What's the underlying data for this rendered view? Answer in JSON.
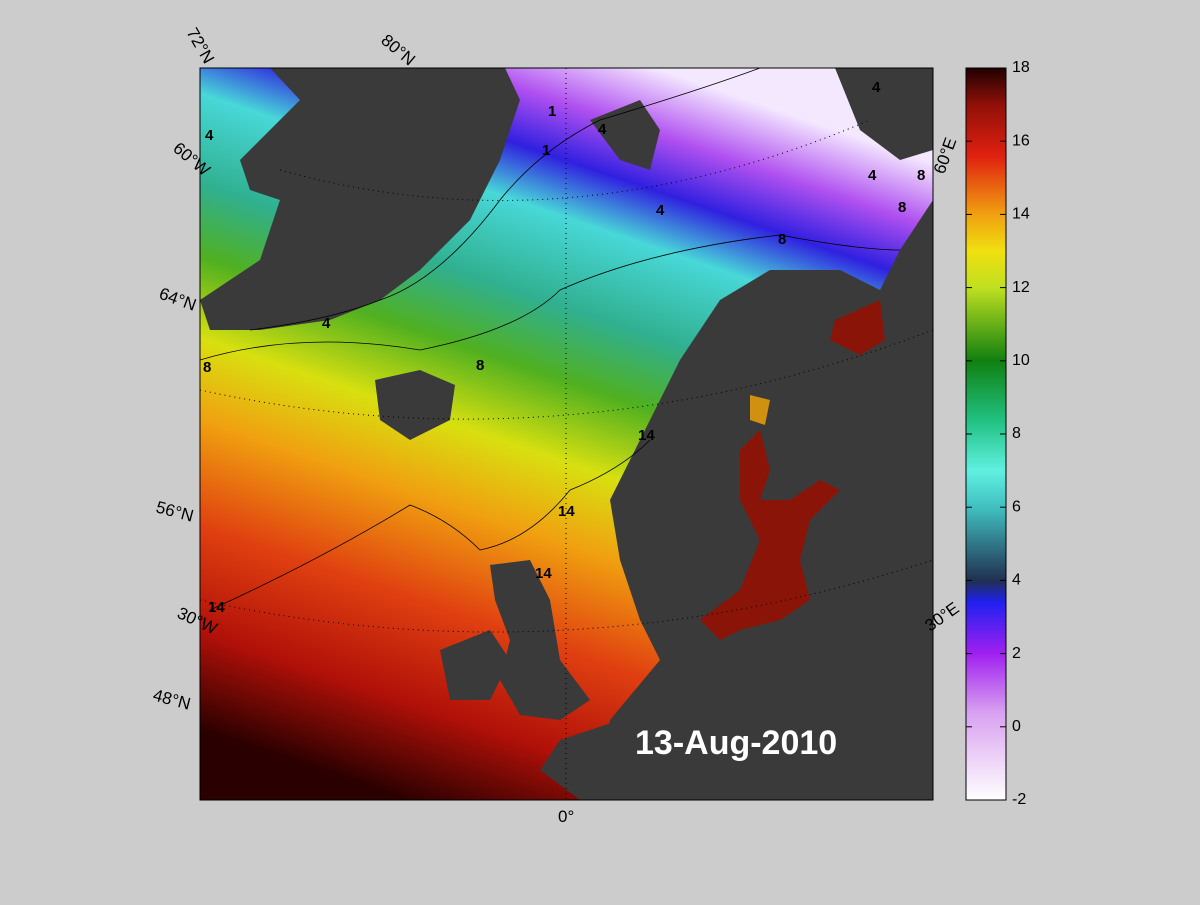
{
  "map": {
    "date": "13-Aug-2010",
    "graticule_labels": [
      "72°N",
      "80°N",
      "60°W",
      "64°N",
      "56°N",
      "30°W",
      "48°N",
      "0°",
      "60°E",
      "30°E"
    ],
    "contour_labels": [
      4,
      8,
      4,
      1,
      1,
      4,
      4,
      4,
      8,
      8,
      8,
      8,
      4,
      14,
      14,
      14,
      14
    ]
  },
  "colorbar": {
    "ylim": [
      -2,
      18
    ],
    "yticks": [
      -2,
      0,
      2,
      4,
      6,
      8,
      10,
      12,
      14,
      16,
      18
    ]
  }
}
